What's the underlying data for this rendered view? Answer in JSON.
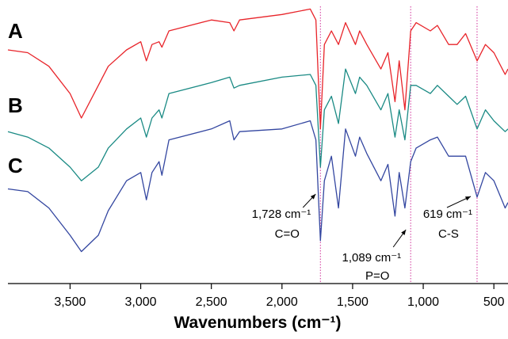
{
  "chart_data": {
    "type": "line",
    "x_label": "Wavenumbers (cm⁻¹)",
    "x": [
      3940,
      3800,
      3650,
      3500,
      3420,
      3300,
      3230,
      3100,
      3000,
      2960,
      2920,
      2870,
      2850,
      2800,
      2500,
      2370,
      2340,
      2300,
      2000,
      1800,
      1760,
      1728,
      1700,
      1650,
      1600,
      1550,
      1480,
      1450,
      1400,
      1300,
      1250,
      1200,
      1170,
      1130,
      1089,
      1050,
      950,
      900,
      820,
      760,
      700,
      619,
      560,
      500,
      420,
      400
    ],
    "series": [
      {
        "name": "A",
        "color": "#e8242a",
        "values": [
          84,
          83,
          78,
          68,
          59,
          71,
          78,
          84,
          87,
          80,
          86,
          87,
          85,
          91,
          95,
          94,
          91,
          95,
          97,
          99,
          95,
          55,
          86,
          91,
          86,
          94,
          86,
          91,
          86,
          77,
          83,
          65,
          80,
          62,
          91,
          94,
          91,
          93,
          86,
          86,
          90,
          80,
          86,
          83,
          75,
          77
        ]
      },
      {
        "name": "B",
        "color": "#1a8a84",
        "values": [
          54,
          52,
          48,
          41,
          36,
          41,
          48,
          55,
          59,
          52,
          59,
          62,
          59,
          68,
          72,
          74,
          70,
          71,
          74,
          75,
          71,
          41,
          62,
          67,
          57,
          77,
          68,
          74,
          71,
          62,
          68,
          52,
          62,
          51,
          71,
          71,
          68,
          71,
          67,
          64,
          67,
          55,
          62,
          58,
          54,
          55
        ]
      },
      {
        "name": "C",
        "color": "#3346a0",
        "values": [
          33,
          32,
          26,
          16,
          10,
          16,
          25,
          36,
          39,
          29,
          39,
          43,
          38,
          51,
          55,
          58,
          51,
          54,
          55,
          58,
          51,
          14,
          36,
          45,
          26,
          55,
          45,
          52,
          46,
          36,
          42,
          23,
          39,
          26,
          43,
          48,
          51,
          52,
          45,
          45,
          45,
          30,
          39,
          36,
          26,
          28
        ]
      }
    ],
    "xlim": [
      3940,
      400
    ],
    "ylim": [
      0,
      100
    ],
    "xticks": [
      {
        "value": 3500,
        "label": "3,500"
      },
      {
        "value": 3000,
        "label": "3,000"
      },
      {
        "value": 2500,
        "label": "2,500"
      },
      {
        "value": 2000,
        "label": "2,000"
      },
      {
        "value": 1500,
        "label": "1,500"
      },
      {
        "value": 1000,
        "label": "1,000"
      },
      500
    ],
    "annotations": [
      {
        "x": 1728,
        "label": "1,728 cm⁻¹",
        "group": "C=O"
      },
      {
        "x": 1089,
        "label": "1,089 cm⁻¹",
        "group": "P=O"
      },
      {
        "x": 619,
        "label": "619 cm⁻¹",
        "group": "C-S"
      }
    ]
  }
}
